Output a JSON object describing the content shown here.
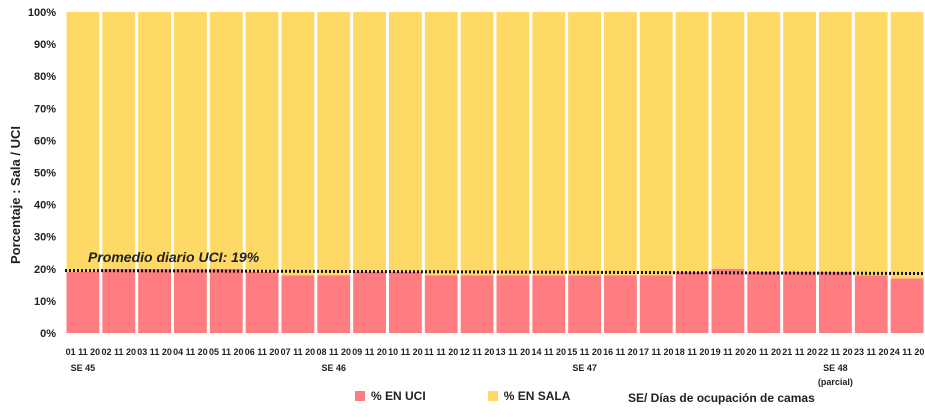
{
  "chart_data": {
    "type": "bar",
    "stacked": true,
    "ylabel": "Porcentaje : Sala / UCI",
    "xlabel": "SE/ Días de ocupación de camas",
    "ylim": [
      0,
      100
    ],
    "yticks": [
      "0%",
      "10%",
      "20%",
      "30%",
      "40%",
      "50%",
      "60%",
      "70%",
      "80%",
      "90%",
      "100%"
    ],
    "grid": false,
    "legend": "bottom",
    "categories": [
      "01 11 20",
      "02 11 20",
      "03 11 20",
      "04 11 20",
      "05 11 20",
      "06 11 20",
      "07 11 20",
      "08 11 20",
      "09 11 20",
      "10 11 20",
      "11 11 20",
      "12 11 20",
      "13 11 20",
      "14 11 20",
      "15 11 20",
      "16 11 20",
      "17 11 20",
      "18 11 20",
      "19 11 20",
      "20 11 20",
      "21 11 20",
      "22 11 20",
      "23 11 20",
      "24 11 20"
    ],
    "series": [
      {
        "name": "% EN UCI",
        "color": "#FF7C80",
        "values": [
          19,
          20,
          20,
          20,
          20,
          19,
          18,
          18,
          19,
          19,
          18,
          18,
          18,
          18,
          18,
          18,
          18,
          19,
          20,
          19,
          19,
          19,
          18,
          17
        ]
      },
      {
        "name": "% EN SALA",
        "color": "#FFD966",
        "values": [
          81,
          80,
          80,
          80,
          80,
          81,
          82,
          82,
          81,
          81,
          82,
          82,
          82,
          82,
          82,
          82,
          82,
          81,
          80,
          81,
          81,
          81,
          82,
          83
        ]
      }
    ],
    "average_line": {
      "label": "Promedio diario UCI: 19%",
      "value": 19,
      "style": "dotted"
    },
    "week_labels": [
      {
        "label": "SE 45",
        "category_index": 0
      },
      {
        "label": "SE 46",
        "category_index": 7
      },
      {
        "label": "SE 47",
        "category_index": 14
      },
      {
        "label": "SE 48",
        "category_index": 21
      }
    ],
    "week_note": "(parcial)"
  }
}
